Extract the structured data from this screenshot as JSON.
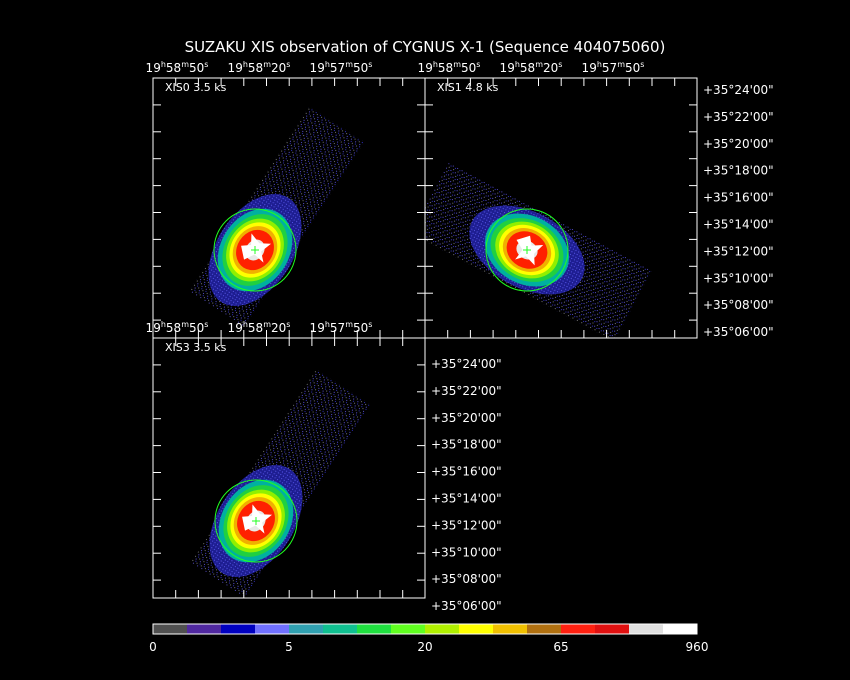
{
  "title": "SUZAKU XIS observation of CYGNUS X-1  (Sequence 404075060)",
  "panels": [
    {
      "label": "XIS0 3.5 ks"
    },
    {
      "label": "XIS1 4.8 ks"
    },
    {
      "label": "XIS3 3.5 ks"
    }
  ],
  "ra_labels": [
    "19h58m50s",
    "19h58m20s",
    "19h57m50s"
  ],
  "dec_labels": [
    "+35°24'00\"",
    "+35°22'00\"",
    "+35°20'00\"",
    "+35°18'00\"",
    "+35°16'00\"",
    "+35°14'00\"",
    "+35°12'00\"",
    "+35°10'00\"",
    "+35°08'00\"",
    "+35°06'00\""
  ],
  "colorbar": {
    "labels": [
      "0",
      "5",
      "20",
      "65",
      "960"
    ]
  }
}
